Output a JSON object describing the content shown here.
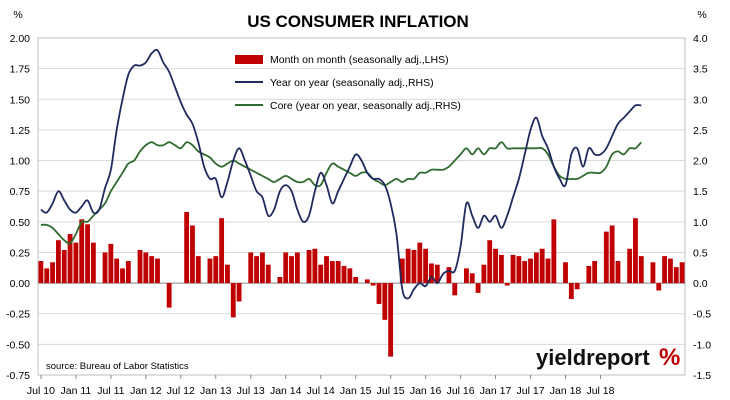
{
  "chart_data": {
    "type": "bar+line",
    "title": "US CONSUMER INFLATION",
    "left_axis": {
      "unit_label": "%",
      "ylim": [
        -0.75,
        2.0
      ],
      "ticks": [
        "-0.75",
        "-0.50",
        "-0.25",
        "0.00",
        "0.25",
        "0.50",
        "0.75",
        "1.00",
        "1.25",
        "1.50",
        "1.75",
        "2.00"
      ]
    },
    "right_axis": {
      "unit_label": "%",
      "ylim": [
        -1.5,
        4.0
      ],
      "ticks": [
        "-1.5",
        "-1.0",
        "-0.5",
        "0.0",
        "0.5",
        "1.0",
        "1.5",
        "2.0",
        "2.5",
        "3.0",
        "3.5",
        "4.0"
      ]
    },
    "x_tick_labels": [
      "Jul 10",
      "Jan 11",
      "Jul 11",
      "Jan 12",
      "Jul 12",
      "Jan 13",
      "Jul 13",
      "Jan 14",
      "Jul 14",
      "Jan 15",
      "Jul 15",
      "Jan 16",
      "Jul 16",
      "Jan 17",
      "Jul 17",
      "Jan 18",
      "Jul 18"
    ],
    "legend_placement": "top-center",
    "series": [
      {
        "name": "Month on month (seasonally adj.,LHS)",
        "kind": "bar",
        "axis": "left",
        "color": "#c00000",
        "values": [
          0.18,
          0.12,
          0.17,
          0.35,
          0.27,
          0.4,
          0.33,
          0.52,
          0.48,
          0.33,
          0.0,
          0.25,
          0.32,
          0.2,
          0.12,
          0.18,
          0.0,
          0.27,
          0.25,
          0.22,
          0.2,
          0.0,
          -0.2,
          0.0,
          0.0,
          0.58,
          0.47,
          0.22,
          0.0,
          0.2,
          0.22,
          0.53,
          0.15,
          -0.28,
          -0.15,
          0.0,
          0.25,
          0.22,
          0.25,
          0.15,
          0.0,
          0.05,
          0.25,
          0.22,
          0.25,
          0.0,
          0.27,
          0.28,
          0.15,
          0.22,
          0.18,
          0.18,
          0.14,
          0.12,
          0.05,
          0.0,
          0.03,
          -0.02,
          -0.17,
          -0.3,
          -0.6,
          0.0,
          0.2,
          0.28,
          0.27,
          0.33,
          0.28,
          0.16,
          0.15,
          0.0,
          0.13,
          -0.1,
          0.0,
          0.12,
          0.08,
          -0.08,
          0.15,
          0.35,
          0.28,
          0.23,
          -0.02,
          0.23,
          0.22,
          0.18,
          0.2,
          0.25,
          0.28,
          0.2,
          0.52,
          0.0,
          0.17,
          -0.13,
          -0.05,
          0.0,
          0.14,
          0.18,
          0.0,
          0.42,
          0.47,
          0.18,
          0.0,
          0.28,
          0.53,
          0.22,
          0.0,
          0.17,
          -0.06,
          0.22,
          0.2,
          0.13,
          0.17
        ]
      },
      {
        "name": "Year on year (seasonally adj.,RHS)",
        "kind": "line",
        "axis": "right",
        "color": "#1f2a5e",
        "points": [
          [
            0,
            1.2
          ],
          [
            1,
            1.15
          ],
          [
            2,
            1.3
          ],
          [
            3,
            1.5
          ],
          [
            4,
            1.35
          ],
          [
            5,
            1.2
          ],
          [
            6,
            1.15
          ],
          [
            7,
            1.25
          ],
          [
            8,
            1.35
          ],
          [
            9,
            1.15
          ],
          [
            10,
            1.2
          ],
          [
            11,
            1.55
          ],
          [
            12,
            1.85
          ],
          [
            13,
            2.5
          ],
          [
            14,
            3.0
          ],
          [
            15,
            3.4
          ],
          [
            16,
            3.55
          ],
          [
            17,
            3.55
          ],
          [
            18,
            3.6
          ],
          [
            19,
            3.75
          ],
          [
            20,
            3.8
          ],
          [
            21,
            3.6
          ],
          [
            22,
            3.45
          ],
          [
            23,
            3.2
          ],
          [
            24,
            2.95
          ],
          [
            25,
            2.75
          ],
          [
            26,
            2.6
          ],
          [
            27,
            2.3
          ],
          [
            28,
            1.9
          ],
          [
            29,
            1.7
          ],
          [
            30,
            1.7
          ],
          [
            31,
            1.4
          ],
          [
            32,
            1.65
          ],
          [
            33,
            2.0
          ],
          [
            34,
            2.2
          ],
          [
            35,
            2.0
          ],
          [
            36,
            1.75
          ],
          [
            37,
            1.5
          ],
          [
            38,
            1.4
          ],
          [
            39,
            1.1
          ],
          [
            40,
            1.2
          ],
          [
            41,
            1.5
          ],
          [
            42,
            1.6
          ],
          [
            43,
            1.5
          ],
          [
            44,
            1.2
          ],
          [
            45,
            1.0
          ],
          [
            46,
            1.1
          ],
          [
            47,
            1.5
          ],
          [
            48,
            1.8
          ],
          [
            49,
            1.6
          ],
          [
            50,
            1.3
          ],
          [
            51,
            1.5
          ],
          [
            52,
            1.7
          ],
          [
            53,
            1.9
          ],
          [
            54,
            2.1
          ],
          [
            55,
            2.0
          ],
          [
            56,
            1.8
          ],
          [
            57,
            1.7
          ],
          [
            58,
            1.7
          ],
          [
            59,
            1.6
          ],
          [
            60,
            1.3
          ],
          [
            61,
            0.8
          ],
          [
            62,
            -0.1
          ],
          [
            63,
            -0.25
          ],
          [
            64,
            -0.1
          ],
          [
            65,
            0.0
          ],
          [
            66,
            -0.05
          ],
          [
            67,
            0.1
          ],
          [
            68,
            0.0
          ],
          [
            69,
            0.15
          ],
          [
            70,
            0.2
          ],
          [
            71,
            0.2
          ],
          [
            72,
            0.6
          ],
          [
            73,
            1.3
          ],
          [
            74,
            1.1
          ],
          [
            75,
            0.9
          ],
          [
            76,
            1.1
          ],
          [
            77,
            1.0
          ],
          [
            78,
            1.1
          ],
          [
            79,
            0.9
          ],
          [
            80,
            1.1
          ],
          [
            81,
            1.4
          ],
          [
            82,
            1.7
          ],
          [
            83,
            2.1
          ],
          [
            84,
            2.5
          ],
          [
            85,
            2.7
          ],
          [
            86,
            2.4
          ],
          [
            87,
            2.2
          ],
          [
            88,
            1.9
          ],
          [
            89,
            1.7
          ],
          [
            90,
            1.6
          ],
          [
            91,
            2.1
          ],
          [
            92,
            2.2
          ],
          [
            93,
            1.9
          ],
          [
            94,
            2.2
          ],
          [
            95,
            2.1
          ],
          [
            96,
            2.1
          ],
          [
            97,
            2.2
          ],
          [
            98,
            2.4
          ],
          [
            99,
            2.6
          ],
          [
            100,
            2.7
          ],
          [
            101,
            2.8
          ],
          [
            102,
            2.9
          ],
          [
            103,
            2.9
          ]
        ]
      },
      {
        "name": "Core (year on year, seasonally adj.,RHS)",
        "kind": "line",
        "axis": "right",
        "color": "#2e6b2e",
        "points": [
          [
            0,
            0.95
          ],
          [
            1,
            0.95
          ],
          [
            2,
            0.9
          ],
          [
            3,
            0.8
          ],
          [
            4,
            0.7
          ],
          [
            5,
            0.65
          ],
          [
            6,
            0.8
          ],
          [
            7,
            1.0
          ],
          [
            8,
            1.0
          ],
          [
            9,
            1.1
          ],
          [
            10,
            1.2
          ],
          [
            11,
            1.3
          ],
          [
            12,
            1.5
          ],
          [
            13,
            1.65
          ],
          [
            14,
            1.8
          ],
          [
            15,
            1.95
          ],
          [
            16,
            2.0
          ],
          [
            17,
            2.15
          ],
          [
            18,
            2.25
          ],
          [
            19,
            2.3
          ],
          [
            20,
            2.25
          ],
          [
            21,
            2.25
          ],
          [
            22,
            2.3
          ],
          [
            23,
            2.25
          ],
          [
            24,
            2.2
          ],
          [
            25,
            2.3
          ],
          [
            26,
            2.25
          ],
          [
            27,
            2.15
          ],
          [
            28,
            2.1
          ],
          [
            29,
            2.05
          ],
          [
            30,
            1.95
          ],
          [
            31,
            1.9
          ],
          [
            32,
            1.95
          ],
          [
            33,
            2.0
          ],
          [
            34,
            1.95
          ],
          [
            35,
            1.9
          ],
          [
            36,
            1.85
          ],
          [
            37,
            1.8
          ],
          [
            38,
            1.75
          ],
          [
            39,
            1.7
          ],
          [
            40,
            1.65
          ],
          [
            41,
            1.7
          ],
          [
            42,
            1.75
          ],
          [
            43,
            1.7
          ],
          [
            44,
            1.65
          ],
          [
            45,
            1.65
          ],
          [
            46,
            1.7
          ],
          [
            47,
            1.6
          ],
          [
            48,
            1.6
          ],
          [
            49,
            1.8
          ],
          [
            50,
            1.95
          ],
          [
            51,
            1.9
          ],
          [
            52,
            1.85
          ],
          [
            53,
            1.8
          ],
          [
            54,
            1.75
          ],
          [
            55,
            1.8
          ],
          [
            56,
            1.8
          ],
          [
            57,
            1.7
          ],
          [
            58,
            1.65
          ],
          [
            59,
            1.6
          ],
          [
            60,
            1.65
          ],
          [
            61,
            1.7
          ],
          [
            62,
            1.65
          ],
          [
            63,
            1.7
          ],
          [
            64,
            1.7
          ],
          [
            65,
            1.8
          ],
          [
            66,
            1.8
          ],
          [
            67,
            1.85
          ],
          [
            68,
            1.85
          ],
          [
            69,
            1.85
          ],
          [
            70,
            1.9
          ],
          [
            71,
            2.0
          ],
          [
            72,
            2.1
          ],
          [
            73,
            2.2
          ],
          [
            74,
            2.1
          ],
          [
            75,
            2.2
          ],
          [
            76,
            2.1
          ],
          [
            77,
            2.2
          ],
          [
            78,
            2.2
          ],
          [
            79,
            2.3
          ],
          [
            80,
            2.2
          ],
          [
            81,
            2.2
          ],
          [
            82,
            2.2
          ],
          [
            83,
            2.2
          ],
          [
            84,
            2.2
          ],
          [
            85,
            2.2
          ],
          [
            86,
            2.2
          ],
          [
            87,
            2.1
          ],
          [
            88,
            1.9
          ],
          [
            89,
            1.75
          ],
          [
            90,
            1.7
          ],
          [
            91,
            1.7
          ],
          [
            92,
            1.7
          ],
          [
            93,
            1.75
          ],
          [
            94,
            1.8
          ],
          [
            95,
            1.8
          ],
          [
            96,
            1.8
          ],
          [
            97,
            1.9
          ],
          [
            98,
            2.1
          ],
          [
            99,
            2.15
          ],
          [
            100,
            2.1
          ],
          [
            101,
            2.2
          ],
          [
            102,
            2.2
          ],
          [
            103,
            2.3
          ]
        ]
      }
    ],
    "source": "source: Bureau of Labor Statistics",
    "brand": {
      "text": "yieldreport",
      "mark": "%"
    }
  }
}
